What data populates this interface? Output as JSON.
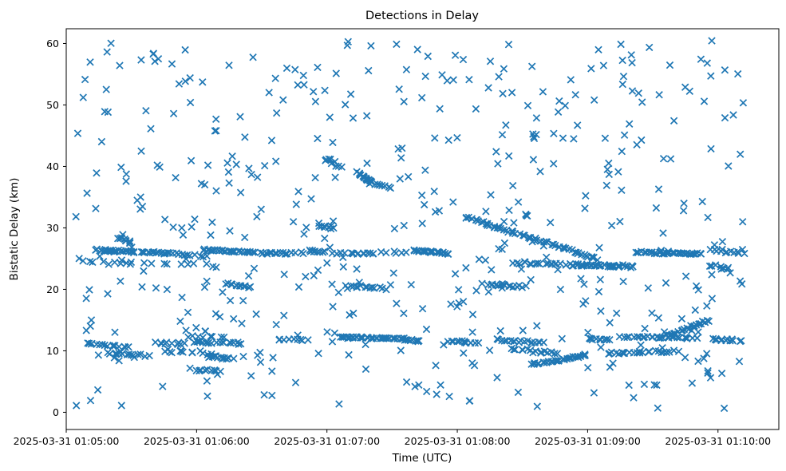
{
  "chart_data": {
    "type": "scatter",
    "title": "Detections in Delay",
    "xlabel": "Time (UTC)",
    "ylabel": "Bistatic Delay (km)",
    "marker": "x",
    "marker_color": "#1f77b4",
    "marker_size_px": 8.2,
    "marker_stroke_px": 1.7,
    "background_color": "#ffffff",
    "spine_color": "#000000",
    "grid": false,
    "legend": null,
    "axes": {
      "x_base_time": "2025-03-31 01:05:00",
      "xlim_seconds": [
        0,
        328
      ],
      "xticks_seconds": [
        0,
        60,
        120,
        180,
        240,
        300
      ],
      "xtick_labels": [
        "2025-03-31 01:05:00",
        "2025-03-31 01:06:00",
        "2025-03-31 01:07:00",
        "2025-03-31 01:08:00",
        "2025-03-31 01:09:00",
        "2025-03-31 01:10:00"
      ],
      "ylim": [
        -2.8,
        62.4
      ],
      "yticks": [
        0,
        10,
        20,
        30,
        40,
        50,
        60
      ],
      "ytick_labels": [
        "0",
        "10",
        "20",
        "30",
        "40",
        "50",
        "60"
      ]
    },
    "seed": 20250331,
    "scatter_spec": {
      "comment": "t = seconds after 2025-03-31 01:05:00 UTC, y = bistatic delay km. tracks format: [t_start, y_start, t_end, y_end, count, t_jitter, y_jitter]",
      "uniform_background": [
        {
          "count": 470,
          "t_range": [
            3,
            313
          ],
          "y_range": [
            0.6,
            60.5
          ]
        }
      ],
      "tracks": [
        [
          13,
          26.4,
          32,
          26.1,
          25,
          1.5,
          0.22
        ],
        [
          34,
          26.1,
          49,
          25.9,
          16,
          1.2,
          0.2
        ],
        [
          50,
          25.7,
          65,
          25.3,
          10,
          1.2,
          0.25
        ],
        [
          63,
          26.4,
          87,
          26.0,
          30,
          1.5,
          0.2
        ],
        [
          88,
          25.9,
          102,
          25.8,
          13,
          1.0,
          0.2
        ],
        [
          103,
          26.0,
          110,
          26.0,
          4,
          1.0,
          0.2
        ],
        [
          111,
          26.3,
          120,
          26.1,
          9,
          0.8,
          0.18
        ],
        [
          121,
          25.9,
          129,
          25.9,
          4,
          1.0,
          0.2
        ],
        [
          130,
          25.9,
          143,
          25.8,
          11,
          1.0,
          0.18
        ],
        [
          144,
          26.0,
          158,
          26.0,
          6,
          1.5,
          0.2
        ],
        [
          159,
          26.3,
          176,
          25.9,
          24,
          1.2,
          0.2
        ],
        [
          8,
          24.6,
          40,
          24.2,
          9,
          2.0,
          0.3
        ],
        [
          41,
          24.1,
          70,
          23.9,
          7,
          2.0,
          0.3
        ],
        [
          24,
          28.3,
          31,
          27.2,
          10,
          1.2,
          0.5
        ],
        [
          183,
          31.9,
          205,
          29.3,
          22,
          1.0,
          0.25
        ],
        [
          205,
          29.3,
          233,
          26.3,
          26,
          1.0,
          0.25
        ],
        [
          233,
          26.1,
          245,
          24.8,
          12,
          0.8,
          0.25
        ],
        [
          205,
          24.3,
          233,
          24.0,
          20,
          1.5,
          0.3
        ],
        [
          233,
          24.0,
          261,
          23.7,
          34,
          1.0,
          0.25
        ],
        [
          262,
          26.0,
          293,
          25.8,
          34,
          1.0,
          0.22
        ],
        [
          296,
          23.9,
          306,
          23.4,
          8,
          1.0,
          0.4
        ],
        [
          295,
          26.4,
          312,
          25.8,
          10,
          1.2,
          0.25
        ],
        [
          134,
          39.0,
          141,
          37.3,
          14,
          0.5,
          0.2
        ],
        [
          141,
          37.2,
          150,
          36.5,
          7,
          0.8,
          0.25
        ],
        [
          119,
          41.3,
          127,
          39.9,
          8,
          1.0,
          0.5
        ],
        [
          116,
          30.3,
          124,
          30.0,
          8,
          1.0,
          0.3
        ],
        [
          73,
          20.9,
          85,
          20.3,
          14,
          1.0,
          0.2
        ],
        [
          130,
          20.6,
          146,
          20.2,
          12,
          1.2,
          0.2
        ],
        [
          192,
          20.8,
          212,
          20.4,
          16,
          1.2,
          0.22
        ],
        [
          8,
          11.2,
          29,
          10.6,
          16,
          1.5,
          0.25
        ],
        [
          18,
          9.6,
          38,
          9.2,
          14,
          1.5,
          0.3
        ],
        [
          41,
          11.3,
          55,
          11.1,
          10,
          1.2,
          0.22
        ],
        [
          45,
          9.9,
          67,
          9.6,
          12,
          1.5,
          0.3
        ],
        [
          58,
          11.5,
          81,
          11.2,
          20,
          1.3,
          0.22
        ],
        [
          65,
          9.2,
          77,
          8.6,
          14,
          1.0,
          0.35
        ],
        [
          59,
          6.9,
          72,
          6.8,
          10,
          1.0,
          0.25
        ],
        [
          55,
          12.3,
          75,
          12.2,
          8,
          1.5,
          0.2
        ],
        [
          97,
          11.9,
          112,
          11.7,
          10,
          1.2,
          0.2
        ],
        [
          126,
          12.2,
          155,
          12.0,
          42,
          1.0,
          0.15
        ],
        [
          155,
          11.9,
          163,
          11.6,
          10,
          0.8,
          0.2
        ],
        [
          175,
          11.6,
          190,
          11.3,
          12,
          1.2,
          0.2
        ],
        [
          197,
          11.8,
          220,
          11.3,
          18,
          1.3,
          0.25
        ],
        [
          240,
          12.0,
          251,
          11.8,
          10,
          1.0,
          0.2
        ],
        [
          255,
          12.3,
          290,
          12.1,
          26,
          1.2,
          0.18
        ],
        [
          276,
          12.4,
          296,
          15.0,
          24,
          0.8,
          0.22
        ],
        [
          297,
          11.9,
          311,
          11.7,
          12,
          1.2,
          0.25
        ],
        [
          204,
          10.2,
          227,
          9.6,
          16,
          1.3,
          0.3
        ],
        [
          214,
          7.7,
          240,
          9.3,
          28,
          0.8,
          0.22
        ],
        [
          248,
          9.5,
          282,
          9.9,
          25,
          1.3,
          0.28
        ]
      ]
    }
  }
}
